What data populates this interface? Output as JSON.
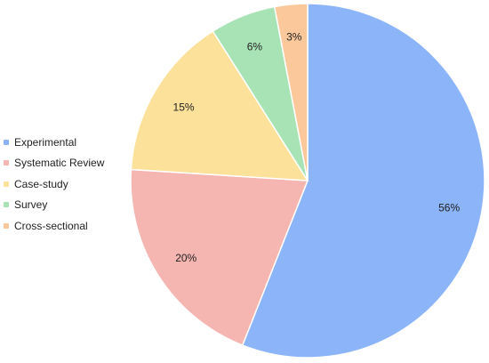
{
  "chart_data": {
    "type": "pie",
    "title": "",
    "legend_position": "left",
    "start_angle": "12 o'clock, clockwise",
    "slices": [
      {
        "name": "Experimental",
        "value": 56,
        "label": "56%",
        "color": "#8cb4f9"
      },
      {
        "name": "Systematic Review",
        "value": 20,
        "label": "20%",
        "color": "#f5b5b0"
      },
      {
        "name": "Case-study",
        "value": 15,
        "label": "15%",
        "color": "#fbe19a"
      },
      {
        "name": "Survey",
        "value": 6,
        "label": "6%",
        "color": "#a8e3b6"
      },
      {
        "name": "Cross-sectional",
        "value": 3,
        "label": "3%",
        "color": "#fbc89c"
      }
    ]
  }
}
